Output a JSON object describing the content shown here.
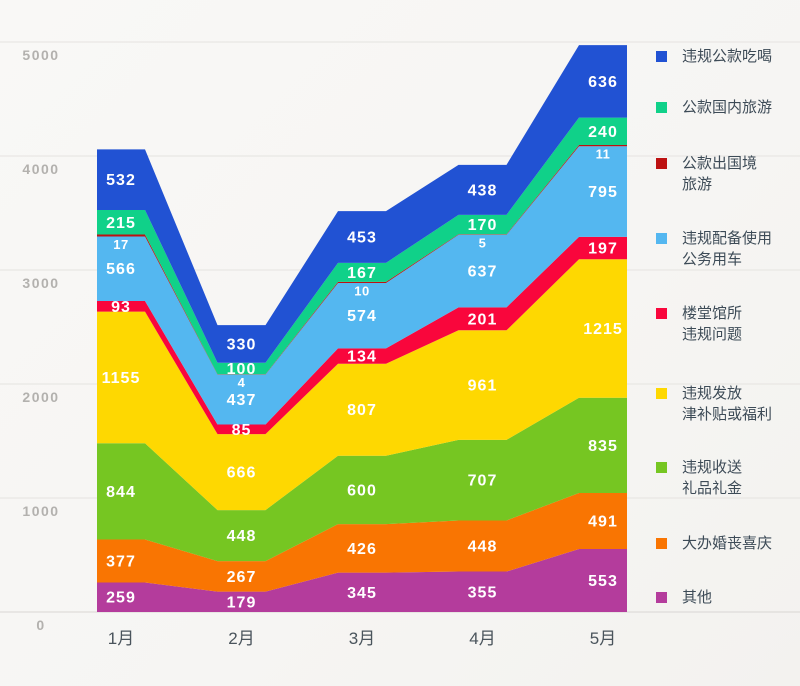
{
  "chart_data": {
    "type": "area",
    "stacked": true,
    "title": "",
    "categories": [
      "1月",
      "2月",
      "3月",
      "4月",
      "5月"
    ],
    "series": [
      {
        "name": "违规公款吃喝",
        "color": "#2152d3",
        "values": [
          532,
          330,
          453,
          438,
          636
        ]
      },
      {
        "name": "公款国内旅游",
        "color": "#10d189",
        "values": [
          215,
          100,
          167,
          170,
          240
        ]
      },
      {
        "name": "公款出国境旅游",
        "color": "#bd1111",
        "values": [
          17,
          4,
          10,
          5,
          11
        ]
      },
      {
        "name": "违规配备使用公务用车",
        "color": "#54b7f0",
        "values": [
          566,
          437,
          574,
          637,
          795
        ]
      },
      {
        "name": "楼堂馆所违规问题",
        "color": "#f9063c",
        "values": [
          93,
          85,
          134,
          201,
          197
        ]
      },
      {
        "name": "违规发放津补贴或福利",
        "color": "#fed801",
        "values": [
          1155,
          666,
          807,
          961,
          1215
        ]
      },
      {
        "name": "违规收送礼品礼金",
        "color": "#76c622",
        "values": [
          844,
          448,
          600,
          707,
          835
        ]
      },
      {
        "name": "大办婚丧喜庆",
        "color": "#f97502",
        "values": [
          377,
          267,
          426,
          448,
          491
        ]
      },
      {
        "name": "其他",
        "color": "#b43c9c",
        "values": [
          259,
          179,
          345,
          355,
          553
        ]
      }
    ],
    "y_ticks": [
      0,
      1000,
      2000,
      3000,
      4000,
      5000
    ],
    "ylim": [
      0,
      5000
    ],
    "grid": true,
    "legend_position": "right",
    "value_labels": true
  },
  "legend": {
    "items": [
      {
        "lines": [
          "违规公款吃喝"
        ]
      },
      {
        "lines": [
          "公款国内旅游"
        ]
      },
      {
        "lines": [
          "公款出国境",
          "旅游"
        ]
      },
      {
        "lines": [
          "违规配备使用",
          "公务用车"
        ]
      },
      {
        "lines": [
          "楼堂馆所",
          "违规问题"
        ]
      },
      {
        "lines": [
          "违规发放",
          "津补贴或福利"
        ]
      },
      {
        "lines": [
          "违规收送",
          "礼品礼金"
        ]
      },
      {
        "lines": [
          "大办婚丧喜庆"
        ]
      },
      {
        "lines": [
          "其他"
        ]
      }
    ]
  },
  "colors": {
    "background": "#f7f6f4",
    "gridline": "#e5e3e0",
    "axis_line": "#d9d6d3",
    "tick_label": "#b3b1ae",
    "month_label": "#4a545c",
    "value_label": "#ffffff"
  }
}
